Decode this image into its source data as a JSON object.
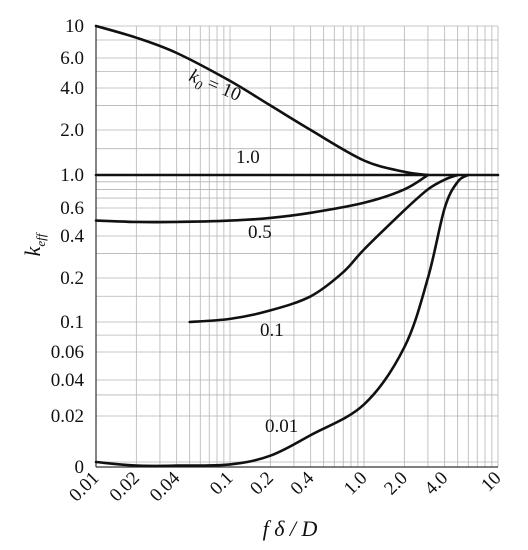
{
  "chart_data": {
    "type": "line",
    "xscale": "log",
    "xlabel": "f δ / D",
    "ylabel": "k_eff",
    "xlim": [
      0.01,
      10
    ],
    "x_ticks": [
      "0.01",
      "0.02",
      "0.04",
      "0.1",
      "0.2",
      "0.4",
      "1.0",
      "2.0",
      "4.0",
      "10"
    ],
    "y_ticks": [
      "10",
      "6.0",
      "4.0",
      "2.0",
      "1.0",
      "0.6",
      "0.4",
      "0.2",
      "0.1",
      "0.06",
      "0.04",
      "0.02",
      "0"
    ],
    "grid": true,
    "series": [
      {
        "name": "k0 = 10",
        "x": [
          0.01,
          0.02,
          0.04,
          0.1,
          0.2,
          0.4,
          1.0,
          2.0,
          3.0
        ],
        "y": [
          10,
          8.3,
          6.5,
          4.4,
          3.0,
          2.0,
          1.25,
          1.05,
          1.0
        ]
      },
      {
        "name": "1.0",
        "x": [
          0.01,
          10
        ],
        "y": [
          1.0,
          1.0
        ]
      },
      {
        "name": "0.5",
        "x": [
          0.01,
          0.02,
          0.04,
          0.1,
          0.2,
          0.4,
          1.0,
          2.0,
          3.0
        ],
        "y": [
          0.5,
          0.49,
          0.49,
          0.5,
          0.52,
          0.56,
          0.65,
          0.8,
          1.0
        ]
      },
      {
        "name": "0.1",
        "x": [
          0.05,
          0.1,
          0.2,
          0.4,
          0.7,
          1.0,
          2.0,
          3.0,
          4.0,
          5.0
        ],
        "y": [
          0.1,
          0.105,
          0.12,
          0.15,
          0.22,
          0.32,
          0.58,
          0.8,
          0.93,
          1.0
        ]
      },
      {
        "name": "0.01",
        "x": [
          0.01,
          0.02,
          0.04,
          0.1,
          0.2,
          0.4,
          1.0,
          2.0,
          3.0,
          4.0,
          5.0,
          6.0
        ],
        "y": [
          0.01,
          0.0085,
          0.0085,
          0.009,
          0.011,
          0.015,
          0.025,
          0.065,
          0.2,
          0.6,
          0.9,
          1.0
        ]
      }
    ],
    "labels": [
      {
        "text_main": "k",
        "text_sub": "0",
        "text_rest": " = 10",
        "series": "k0 = 10"
      },
      {
        "text": "1.0",
        "series": "1.0"
      },
      {
        "text": "0.5",
        "series": "0.5"
      },
      {
        "text": "0.1",
        "series": "0.1"
      },
      {
        "text": "0.01",
        "series": "0.01"
      }
    ]
  }
}
